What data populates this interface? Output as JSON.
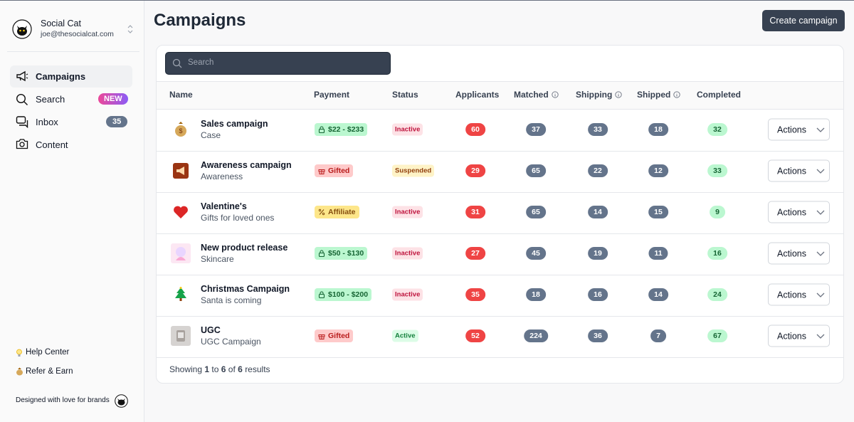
{
  "sidebar": {
    "account": {
      "name": "Social Cat",
      "email": "joe@thesocialcat.com"
    },
    "nav": [
      {
        "label": "Campaigns"
      },
      {
        "label": "Search",
        "badge": "NEW"
      },
      {
        "label": "Inbox",
        "badge": 35
      },
      {
        "label": "Content"
      }
    ],
    "links": [
      "Help Center",
      "Refer & Earn"
    ],
    "tagline": "Designed with love for brands"
  },
  "header": {
    "title": "Campaigns",
    "button": "Create campaign"
  },
  "search": {
    "placeholder": "Search"
  },
  "table": {
    "columns": [
      {
        "label": "Name"
      },
      {
        "label": "Payment"
      },
      {
        "label": "Status"
      },
      {
        "label": "Applicants"
      },
      {
        "label": "Matched",
        "info": true
      },
      {
        "label": "Shipping",
        "info": true
      },
      {
        "label": "Shipped",
        "info": true
      },
      {
        "label": "Completed"
      }
    ],
    "rows": [
      {
        "image": "bag",
        "name": "Sales campaign",
        "subtitle": "Case",
        "payment": {
          "text": "$22 - $233",
          "tone": "green",
          "icon": "lock"
        },
        "status": {
          "text": "Inactive",
          "tone": "pink"
        },
        "applicants": 60,
        "matched": 37,
        "shipping": 33,
        "shipped": 18,
        "completed": 32,
        "action": "Actions"
      },
      {
        "image": "megaphone",
        "name": "Awareness campaign",
        "subtitle": "Awareness",
        "payment": {
          "text": "Gifted",
          "tone": "red",
          "icon": "gift"
        },
        "status": {
          "text": "Suspended",
          "tone": "yellow"
        },
        "applicants": 29,
        "matched": 65,
        "shipping": 22,
        "shipped": 12,
        "completed": 33,
        "action": "Actions"
      },
      {
        "image": "heart",
        "name": "Valentine's",
        "subtitle": "Gifts for loved ones",
        "payment": {
          "text": "Affiliate",
          "tone": "yellow",
          "icon": "percent"
        },
        "status": {
          "text": "Inactive",
          "tone": "pink"
        },
        "applicants": 31,
        "matched": 65,
        "shipping": 14,
        "shipped": 15,
        "completed": 9,
        "action": "Actions"
      },
      {
        "image": "skincare",
        "name": "New product release",
        "subtitle": "Skincare",
        "payment": {
          "text": "$50 - $130",
          "tone": "green",
          "icon": "lock"
        },
        "status": {
          "text": "Inactive",
          "tone": "pink"
        },
        "applicants": 27,
        "matched": 45,
        "shipping": 19,
        "shipped": 11,
        "completed": 16,
        "action": "Actions"
      },
      {
        "image": "tree",
        "name": "Christmas Campaign",
        "subtitle": "Santa is coming",
        "payment": {
          "text": "$100 - $200",
          "tone": "green",
          "icon": "lock"
        },
        "status": {
          "text": "Inactive",
          "tone": "pink"
        },
        "applicants": 35,
        "matched": 18,
        "shipping": 16,
        "shipped": 14,
        "completed": 24,
        "action": "Actions"
      },
      {
        "image": "ugc",
        "name": "UGC",
        "subtitle": "UGC Campaign",
        "payment": {
          "text": "Gifted",
          "tone": "red",
          "icon": "gift"
        },
        "status": {
          "text": "Active",
          "tone": "green"
        },
        "applicants": 52,
        "matched": 224,
        "shipping": 36,
        "shipped": 7,
        "completed": 67,
        "action": "Actions"
      }
    ]
  },
  "pagination": {
    "prefix": "Showing",
    "from": 1,
    "to_word": "to",
    "to": 6,
    "of_word": "of",
    "total": 6,
    "suffix": "results"
  }
}
